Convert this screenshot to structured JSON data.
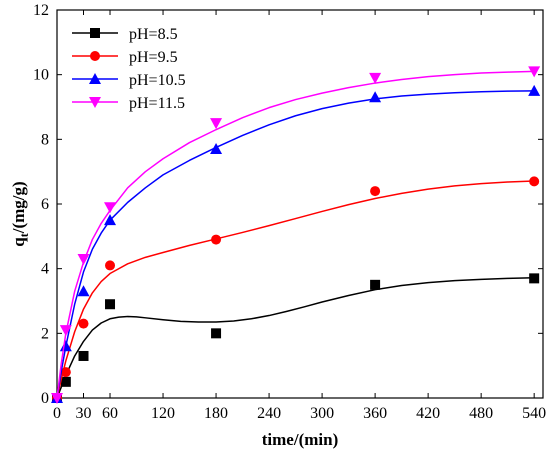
{
  "chart_data": {
    "type": "scatter",
    "xlabel": "time/(min)",
    "ylabel": "qt/(mg/g)",
    "ylabel_parts": {
      "base": "q",
      "sub": "t",
      "suffix": "/(mg/g)"
    },
    "xlim": [
      0,
      550
    ],
    "ylim": [
      0,
      12
    ],
    "xticks": [
      0,
      30,
      60,
      120,
      180,
      240,
      300,
      360,
      420,
      480,
      540
    ],
    "yticks": [
      0,
      2,
      4,
      6,
      8,
      10,
      12
    ],
    "grid": false,
    "legend_position": "top-left",
    "series": [
      {
        "name": "pH=8.5",
        "color": "#000000",
        "marker": "square",
        "x": [
          0,
          10,
          30,
          60,
          180,
          360,
          540
        ],
        "y": [
          0,
          0.5,
          1.3,
          2.9,
          2.0,
          3.5,
          3.7
        ],
        "fit_x": [
          0,
          5,
          10,
          20,
          30,
          40,
          50,
          60,
          70,
          80,
          90,
          100,
          120,
          140,
          160,
          180,
          200,
          220,
          240,
          260,
          280,
          300,
          330,
          360,
          390,
          420,
          450,
          480,
          510,
          540
        ],
        "fit_y": [
          0,
          0.35,
          0.7,
          1.3,
          1.75,
          2.1,
          2.32,
          2.45,
          2.5,
          2.52,
          2.51,
          2.48,
          2.42,
          2.37,
          2.35,
          2.35,
          2.38,
          2.45,
          2.55,
          2.68,
          2.82,
          2.97,
          3.17,
          3.35,
          3.48,
          3.57,
          3.63,
          3.67,
          3.7,
          3.72
        ]
      },
      {
        "name": "pH=9.5",
        "color": "#ff0000",
        "marker": "circle",
        "x": [
          0,
          10,
          30,
          60,
          180,
          360,
          540
        ],
        "y": [
          0,
          0.8,
          2.3,
          4.1,
          4.9,
          6.4,
          6.7
        ],
        "fit_x": [
          0,
          5,
          10,
          20,
          30,
          40,
          50,
          60,
          80,
          100,
          120,
          150,
          180,
          210,
          240,
          270,
          300,
          330,
          360,
          390,
          420,
          450,
          480,
          510,
          540
        ],
        "fit_y": [
          0,
          0.6,
          1.15,
          2.05,
          2.75,
          3.25,
          3.6,
          3.85,
          4.15,
          4.35,
          4.5,
          4.72,
          4.92,
          5.12,
          5.33,
          5.55,
          5.77,
          5.98,
          6.17,
          6.33,
          6.46,
          6.56,
          6.63,
          6.68,
          6.71
        ]
      },
      {
        "name": "pH=10.5",
        "color": "#0000ff",
        "marker": "triangle-up",
        "x": [
          0,
          10,
          30,
          60,
          180,
          360,
          540
        ],
        "y": [
          0,
          1.6,
          3.3,
          5.5,
          7.7,
          9.3,
          9.5
        ],
        "fit_x": [
          0,
          5,
          10,
          20,
          30,
          40,
          50,
          60,
          80,
          100,
          120,
          150,
          180,
          210,
          240,
          270,
          300,
          330,
          360,
          390,
          420,
          450,
          480,
          510,
          540
        ],
        "fit_y": [
          0,
          0.85,
          1.6,
          2.9,
          3.9,
          4.6,
          5.1,
          5.5,
          6.05,
          6.5,
          6.9,
          7.35,
          7.75,
          8.12,
          8.45,
          8.73,
          8.95,
          9.12,
          9.25,
          9.34,
          9.4,
          9.44,
          9.47,
          9.49,
          9.5
        ]
      },
      {
        "name": "pH=11.5",
        "color": "#ff00ff",
        "marker": "triangle-down",
        "x": [
          0,
          10,
          30,
          60,
          180,
          360,
          540
        ],
        "y": [
          0,
          2.1,
          4.3,
          5.9,
          8.5,
          9.9,
          10.1
        ],
        "fit_x": [
          0,
          5,
          10,
          20,
          30,
          40,
          50,
          60,
          80,
          100,
          120,
          150,
          180,
          210,
          240,
          270,
          300,
          330,
          360,
          390,
          420,
          450,
          480,
          510,
          540
        ],
        "fit_y": [
          0,
          1.1,
          2.0,
          3.3,
          4.2,
          4.9,
          5.4,
          5.8,
          6.5,
          7.0,
          7.4,
          7.9,
          8.3,
          8.67,
          8.98,
          9.23,
          9.43,
          9.6,
          9.74,
          9.85,
          9.94,
          10.0,
          10.05,
          10.08,
          10.1
        ]
      }
    ]
  }
}
